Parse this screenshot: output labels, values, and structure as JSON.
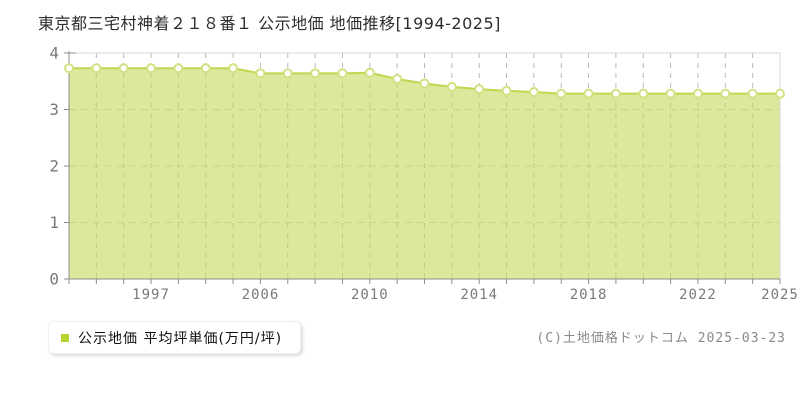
{
  "title": "東京都三宅村神着２１８番１ 公示地価 地価推移[1994-2025]",
  "legend": {
    "label": "公示地価 平均坪単価(万円/坪)",
    "marker_color": "#b3d42e"
  },
  "footer": {
    "copyright": "(C)土地価格ドットコム 2025-03-23"
  },
  "chart_data": {
    "type": "area",
    "title": "東京都三宅村神着２１８番１ 公示地価 地価推移[1994-2025]",
    "x": [
      1994,
      1995,
      1996,
      1997,
      1998,
      1999,
      2000,
      2006,
      2007,
      2008,
      2009,
      2010,
      2011,
      2012,
      2013,
      2014,
      2015,
      2016,
      2017,
      2018,
      2019,
      2020,
      2021,
      2022,
      2023,
      2024,
      2025
    ],
    "series": [
      {
        "name": "公示地価 平均坪単価(万円/坪)",
        "values": [
          3.73,
          3.73,
          3.73,
          3.73,
          3.73,
          3.73,
          3.73,
          3.64,
          3.64,
          3.64,
          3.64,
          3.65,
          3.54,
          3.46,
          3.4,
          3.36,
          3.33,
          3.31,
          3.28,
          3.28,
          3.28,
          3.28,
          3.28,
          3.28,
          3.28,
          3.28,
          3.28
        ]
      }
    ],
    "x_tick_years": [
      1997,
      2006,
      2010,
      2014,
      2018,
      2022,
      2025
    ],
    "y_ticks": [
      0,
      1,
      2,
      3,
      4
    ],
    "ylim": [
      0,
      4
    ],
    "xlabel": "",
    "ylabel": "",
    "grid": "dashed vertical line at every data point, dashed horizontal at 1,2,3",
    "legend_position": "bottom-left",
    "colors": {
      "line": "#c1d64f",
      "fill": "rgba(200,218,95,0.62)",
      "marker_fill": "#ffffff",
      "marker_stroke": "#d2e283",
      "axis": "#8c8c8c",
      "gridline": "#b9b9b9",
      "tick_label": "#7a7a7a",
      "plot_border": "#d9d9d9"
    }
  }
}
